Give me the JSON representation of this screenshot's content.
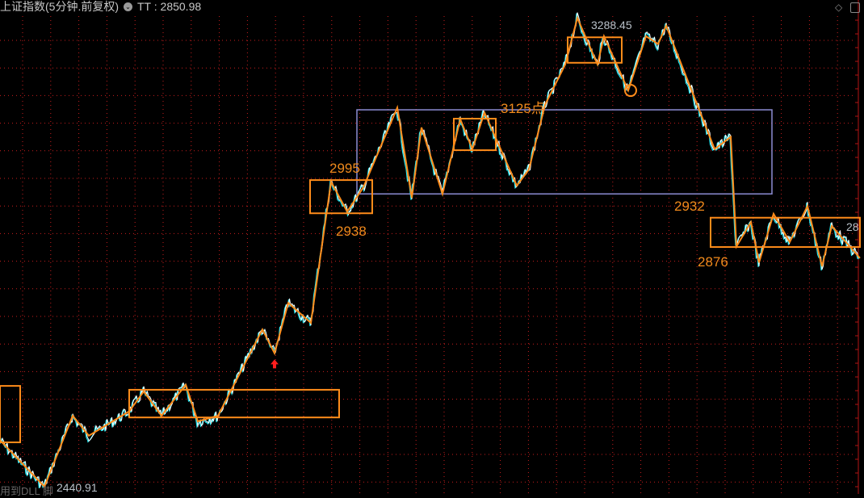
{
  "header": {
    "title": "上证指数(5分钟.前复权)",
    "indicator": "TT",
    "indicator_value": "2850.98",
    "separator": ":"
  },
  "footer": {
    "partial_text": "用到DLL 脚"
  },
  "colors": {
    "background": "#000000",
    "grid": "#c81e1e",
    "price": "#ffffff",
    "price_shadow": "#19e6f0",
    "zigzag": "#ff8c1a",
    "box": "#ff8c1a",
    "range_box": "#8c8cd2",
    "arrow": "#ff1e1e"
  },
  "icons": {
    "top_right": [
      "diamond-icon",
      "panel-toggle-icon"
    ],
    "marker": "up-arrow-icon"
  },
  "chart_data": {
    "type": "line",
    "title": "",
    "ylim": [
      2440.91,
      3288.45
    ],
    "xlim": [
      0,
      1070
    ],
    "grid": true,
    "high_label": "3288.45",
    "low_label": "2440.91",
    "zigzag": {
      "x": [
        0,
        55,
        90,
        110,
        160,
        178,
        200,
        230,
        245,
        270,
        325,
        340,
        357,
        385,
        410,
        430,
        450,
        492,
        510,
        522,
        548,
        570,
        585,
        600,
        640,
        655,
        675,
        700,
        715,
        740,
        748,
        778,
        800,
        815,
        825,
        885,
        905,
        912,
        930,
        940,
        958,
        978,
        1000,
        1018,
        1030,
        1065
      ],
      "y": [
        2528,
        2444,
        2572,
        2536,
        2580,
        2616,
        2572,
        2628,
        2562,
        2572,
        2728,
        2685,
        2776,
        2740,
        2995,
        2941,
        2985,
        3129,
        2966,
        3093,
        2973,
        3108,
        3054,
        3120,
        2988,
        3017,
        3134,
        3207,
        3291,
        3207,
        3258,
        3160,
        3258,
        3244,
        3277,
        3054,
        3076,
        2878,
        2922,
        2849,
        2937,
        2886,
        2951,
        2842,
        2915,
        2857
      ]
    },
    "boxes": [
      {
        "x": [
          0,
          25
        ],
        "y": [
          2524,
          2626
        ]
      },
      {
        "x": [
          160,
          420
        ],
        "y": [
          2569,
          2619
        ]
      },
      {
        "x": [
          384,
          461
        ],
        "y": [
          2938,
          2998
        ]
      },
      {
        "x": [
          562,
          614
        ],
        "y": [
          3052,
          3109
        ]
      },
      {
        "x": [
          703,
          770
        ],
        "y": [
          3210,
          3256
        ]
      },
      {
        "x": [
          880,
          1065
        ],
        "y": [
          2877,
          2930
        ]
      }
    ],
    "range_box": {
      "x": [
        442,
        956
      ],
      "y": [
        2973,
        3125
      ]
    },
    "circle_marker": {
      "x": 781,
      "y": 3160
    },
    "arrow_marker": {
      "x": 340,
      "y": 2665
    },
    "annotations": [
      {
        "text": "2995",
        "x": 408,
        "y": 3018
      },
      {
        "text": "2938",
        "x": 416,
        "y": 2905
      },
      {
        "text": "3125点",
        "x": 620,
        "y": 3134
      },
      {
        "text": "2932",
        "x": 835,
        "y": 2950
      },
      {
        "text": "2876",
        "x": 864,
        "y": 2850
      },
      {
        "text": "28",
        "x": 1048,
        "y": 2910
      }
    ]
  }
}
